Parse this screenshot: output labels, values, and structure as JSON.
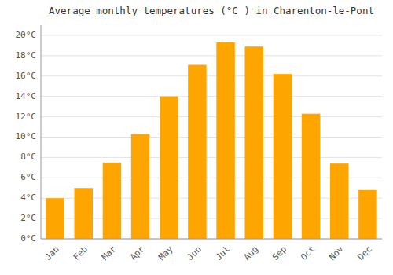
{
  "chart_data": {
    "type": "bar",
    "title": "Average monthly temperatures (°C ) in Charenton-le-Pont",
    "categories": [
      "Jan",
      "Feb",
      "Mar",
      "Apr",
      "May",
      "Jun",
      "Jul",
      "Aug",
      "Sep",
      "Oct",
      "Nov",
      "Dec"
    ],
    "values": [
      4.0,
      5.0,
      7.5,
      10.3,
      14.0,
      17.1,
      19.3,
      18.9,
      16.2,
      12.3,
      7.4,
      4.8
    ],
    "color": "#FFA500",
    "ylim": [
      0,
      21
    ],
    "yticks": [
      {
        "value": 0,
        "label": "0°C"
      },
      {
        "value": 2,
        "label": "2°C"
      },
      {
        "value": 4,
        "label": "4°C"
      },
      {
        "value": 6,
        "label": "6°C"
      },
      {
        "value": 8,
        "label": "8°C"
      },
      {
        "value": 10,
        "label": "10°C"
      },
      {
        "value": 12,
        "label": "12°C"
      },
      {
        "value": 14,
        "label": "14°C"
      },
      {
        "value": 16,
        "label": "16°C"
      },
      {
        "value": 18,
        "label": "18°C"
      },
      {
        "value": 20,
        "label": "20°C"
      }
    ],
    "grid": true
  }
}
